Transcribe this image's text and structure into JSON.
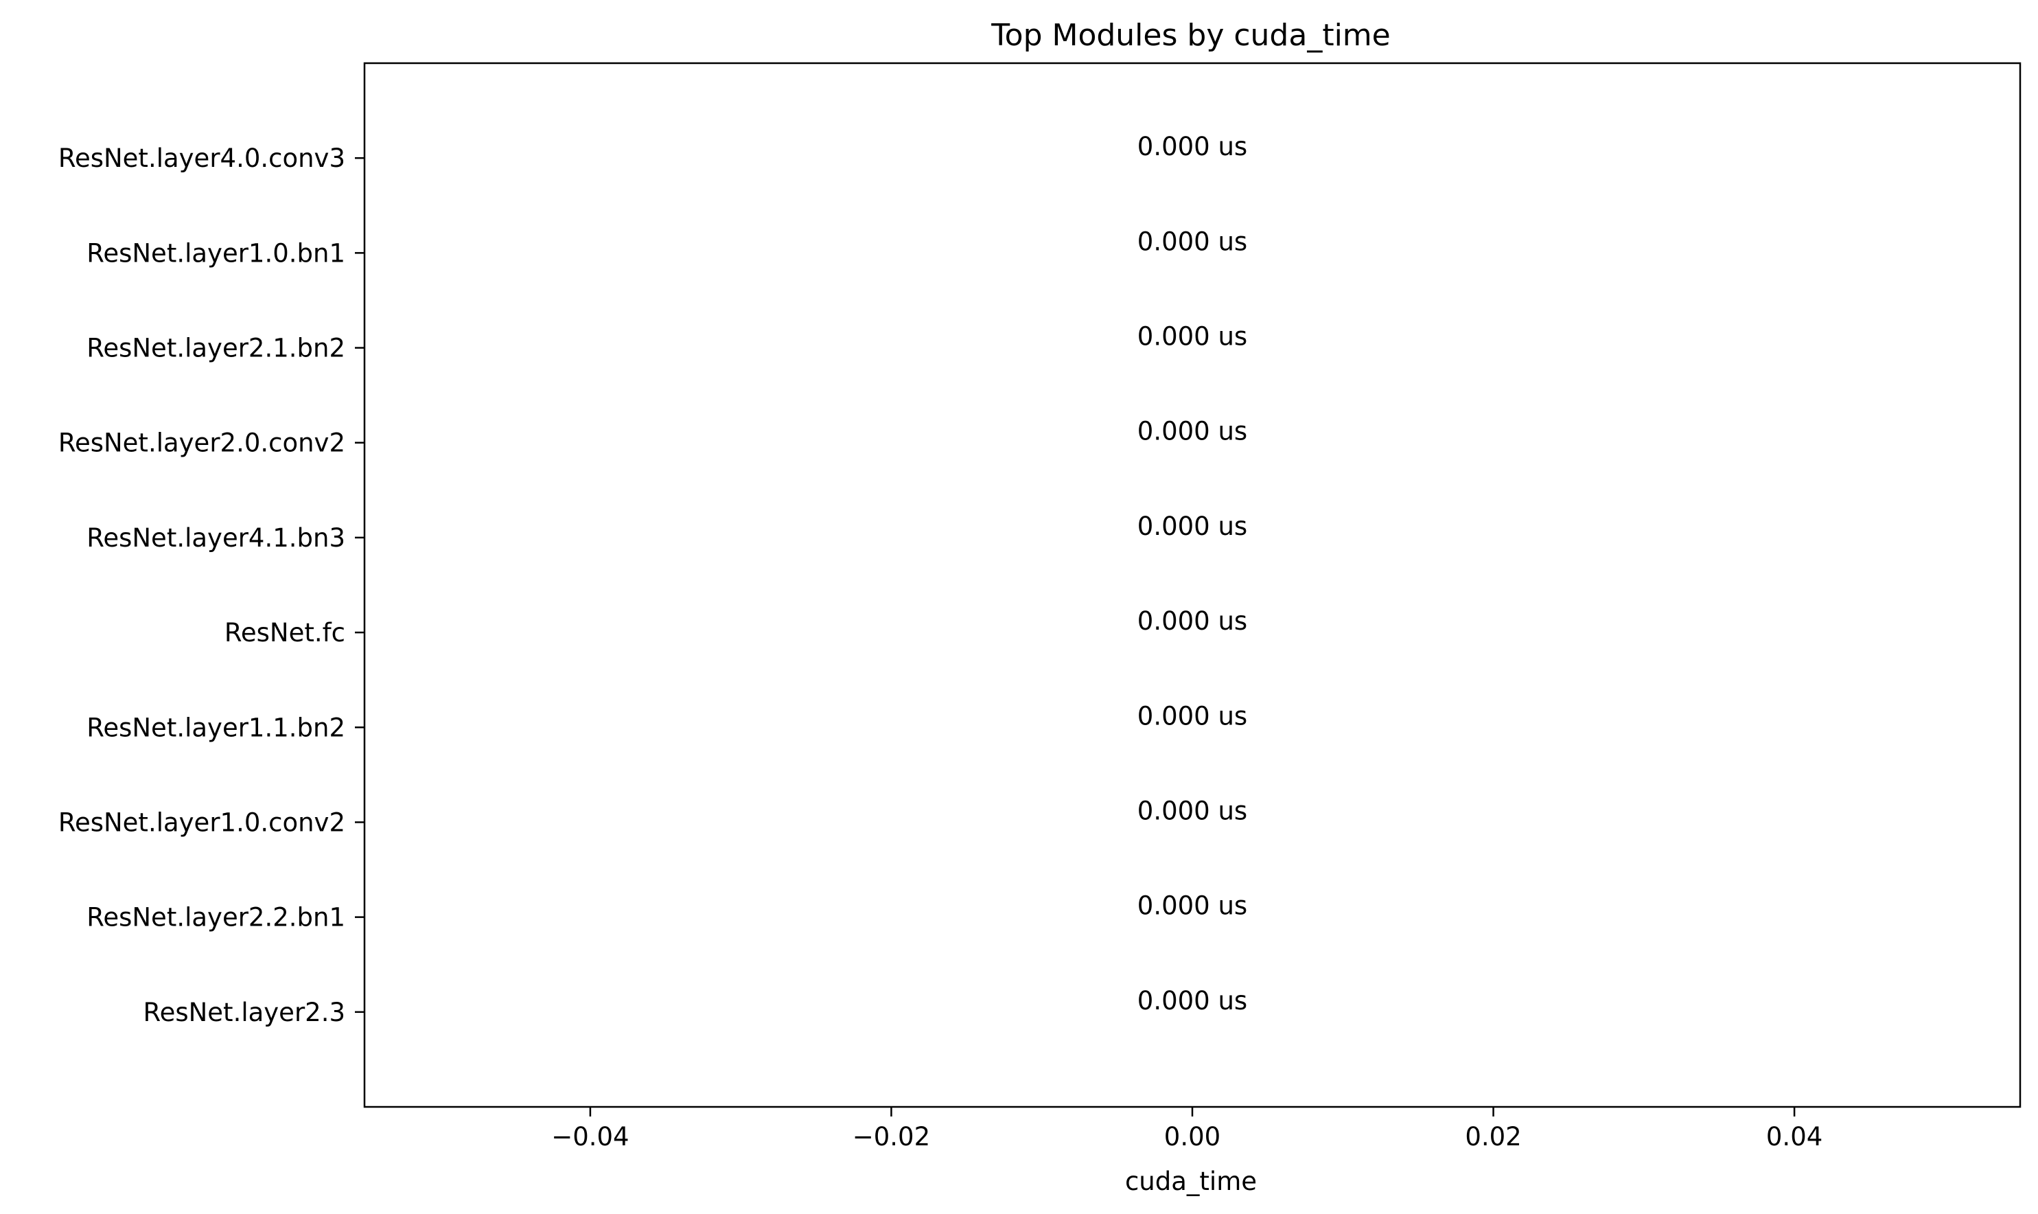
{
  "chart_data": {
    "type": "bar",
    "orientation": "horizontal",
    "title": "Top Modules by cuda_time",
    "xlabel": "cuda_time",
    "ylabel": "",
    "categories": [
      "ResNet.layer4.0.conv3",
      "ResNet.layer1.0.bn1",
      "ResNet.layer2.1.bn2",
      "ResNet.layer2.0.conv2",
      "ResNet.layer4.1.bn3",
      "ResNet.fc",
      "ResNet.layer1.1.bn2",
      "ResNet.layer1.0.conv2",
      "ResNet.layer2.2.bn1",
      "ResNet.layer2.3"
    ],
    "values": [
      0,
      0,
      0,
      0,
      0,
      0,
      0,
      0,
      0,
      0
    ],
    "value_labels": [
      "0.000 us",
      "0.000 us",
      "0.000 us",
      "0.000 us",
      "0.000 us",
      "0.000 us",
      "0.000 us",
      "0.000 us",
      "0.000 us",
      "0.000 us"
    ],
    "xlim": [
      -0.055,
      0.055
    ],
    "xticks": [
      -0.04,
      -0.02,
      0.0,
      0.02,
      0.04
    ],
    "xtick_labels": [
      "−0.04",
      "−0.02",
      "0.00",
      "0.02",
      "0.04"
    ],
    "grid": false,
    "legend": "none",
    "colors": {
      "bar": "#1f77b4",
      "axes": "#000000",
      "text": "#000000",
      "background": "#ffffff"
    }
  }
}
